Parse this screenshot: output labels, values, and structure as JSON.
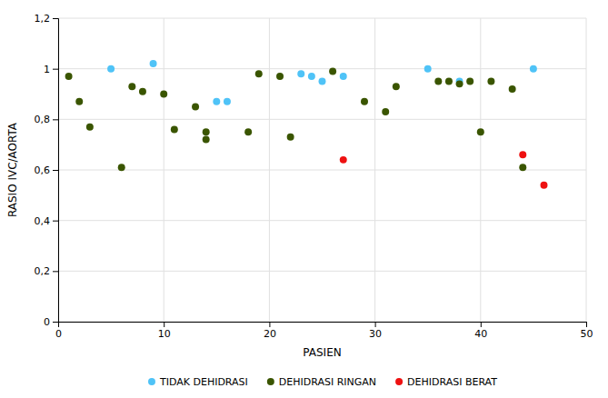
{
  "chart_data": {
    "type": "scatter",
    "xlabel": "PASIEN",
    "ylabel": "RASIO IVC/AORTA",
    "xlim": [
      0,
      50
    ],
    "ylim": [
      0,
      1.2
    ],
    "xticks": [
      0,
      10,
      20,
      30,
      40,
      50
    ],
    "yticks": [
      0,
      {
        "value": 0.2,
        "label": "0,2"
      },
      {
        "value": 0.4,
        "label": "0,4"
      },
      {
        "value": 0.6,
        "label": "0,6"
      },
      {
        "value": 0.8,
        "label": "0,8"
      },
      1,
      {
        "value": 1.2,
        "label": "1,2"
      }
    ],
    "grid": true,
    "legend": "bottom",
    "marker": "circle",
    "series": [
      {
        "name": "TIDAK DEHIDRASI",
        "color": "#4FC3F7",
        "x": [
          5,
          9,
          15,
          16,
          23,
          24,
          25,
          27,
          35,
          38,
          45
        ],
        "values": [
          1.0,
          1.02,
          0.87,
          0.87,
          0.98,
          0.97,
          0.95,
          0.97,
          1.0,
          0.95,
          1.0
        ]
      },
      {
        "name": "DEHIDRASI RINGAN",
        "color": "#3A5500",
        "x": [
          1,
          2,
          3,
          6,
          7,
          8,
          10,
          11,
          13,
          14,
          14,
          18,
          19,
          21,
          22,
          26,
          29,
          31,
          32,
          36,
          37,
          38,
          39,
          40,
          41,
          43,
          44
        ],
        "values": [
          0.97,
          0.87,
          0.77,
          0.61,
          0.93,
          0.91,
          0.9,
          0.76,
          0.85,
          0.75,
          0.72,
          0.75,
          0.98,
          0.97,
          0.73,
          0.99,
          0.87,
          0.83,
          0.93,
          0.95,
          0.95,
          0.94,
          0.95,
          0.75,
          0.95,
          0.92,
          0.61
        ]
      },
      {
        "name": "DEHIDRASI BERAT",
        "color": "#EE1111",
        "x": [
          27,
          44,
          46
        ],
        "values": [
          0.64,
          0.66,
          0.54
        ]
      }
    ]
  }
}
